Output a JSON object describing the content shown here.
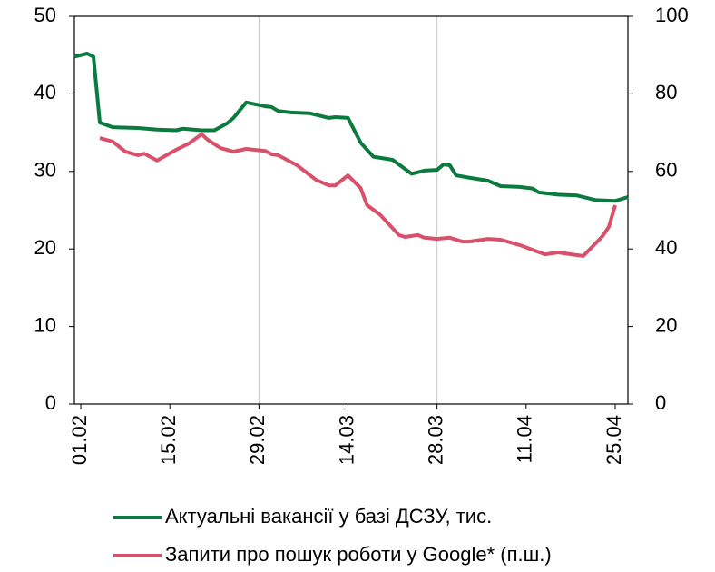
{
  "chart_data": {
    "type": "line",
    "xlim": [
      "31.01",
      "27.04"
    ],
    "xticks": [
      "01.02",
      "15.02",
      "29.02",
      "14.03",
      "28.03",
      "11.04",
      "25.04"
    ],
    "xgrid": [
      "29.02",
      "28.03"
    ],
    "ylim": [
      0,
      50
    ],
    "yticks": [
      0,
      10,
      20,
      30,
      40,
      50
    ],
    "y2lim": [
      0,
      100
    ],
    "y2ticks": [
      0,
      20,
      40,
      60,
      80,
      100
    ],
    "legend": "bottom",
    "series": [
      {
        "name": "Актуальні вакансії у базі ДСЗУ, тис.",
        "color": "#0a7a3e",
        "x": [
          "31.01",
          "02.02",
          "03.02",
          "04.02",
          "06.02",
          "10.02",
          "13.02",
          "16.02",
          "17.02",
          "20.02",
          "22.02",
          "24.02",
          "25.02",
          "27.02",
          "01.03",
          "02.03",
          "03.03",
          "05.03",
          "08.03",
          "11.03",
          "12.03",
          "14.03",
          "16.03",
          "18.03",
          "21.03",
          "24.03",
          "26.03",
          "28.03",
          "29.03",
          "30.03",
          "31.03",
          "02.04",
          "05.04",
          "07.04",
          "10.04",
          "12.04",
          "13.04",
          "16.04",
          "19.04",
          "22.04",
          "25.04",
          "27.04"
        ],
        "values": [
          44.8,
          45.2,
          44.8,
          36.3,
          35.7,
          35.6,
          35.4,
          35.3,
          35.5,
          35.3,
          35.3,
          36.2,
          36.9,
          38.9,
          38.4,
          38.3,
          37.8,
          37.6,
          37.5,
          36.9,
          37.0,
          36.9,
          33.7,
          31.9,
          31.5,
          29.7,
          30.1,
          30.2,
          30.9,
          30.8,
          29.5,
          29.2,
          28.8,
          28.1,
          28.0,
          27.8,
          27.3,
          27.0,
          26.9,
          26.3,
          26.2,
          26.7
        ]
      },
      {
        "name": "Запити про пошук роботи у Google* (п.ш.)",
        "color": "#d9506a",
        "axis": "y2",
        "x": [
          "04.02",
          "06.02",
          "08.02",
          "10.02",
          "11.02",
          "13.02",
          "16.02",
          "18.02",
          "19.02",
          "20.02",
          "21.02",
          "23.02",
          "25.02",
          "27.02",
          "01.03",
          "02.03",
          "03.03",
          "06.03",
          "09.03",
          "11.03",
          "12.03",
          "14.03",
          "16.03",
          "17.03",
          "19.03",
          "22.03",
          "23.03",
          "25.03",
          "26.03",
          "28.03",
          "30.03",
          "01.04",
          "02.04",
          "05.04",
          "07.04",
          "10.04",
          "12.04",
          "14.04",
          "16.04",
          "19.04",
          "20.04",
          "23.04",
          "24.04",
          "25.04"
        ],
        "values": [
          68.6,
          67.7,
          65.1,
          64.2,
          64.6,
          62.8,
          65.6,
          67.2,
          68.4,
          69.6,
          68.1,
          66.0,
          65.1,
          65.8,
          65.3,
          64.4,
          64.2,
          61.6,
          57.8,
          56.4,
          56.4,
          59.0,
          55.7,
          51.3,
          48.9,
          43.6,
          43.1,
          43.6,
          42.9,
          42.6,
          42.9,
          41.9,
          41.9,
          42.6,
          42.4,
          41.0,
          39.8,
          38.6,
          39.1,
          38.4,
          38.2,
          43.3,
          45.7,
          51.3
        ]
      }
    ]
  }
}
